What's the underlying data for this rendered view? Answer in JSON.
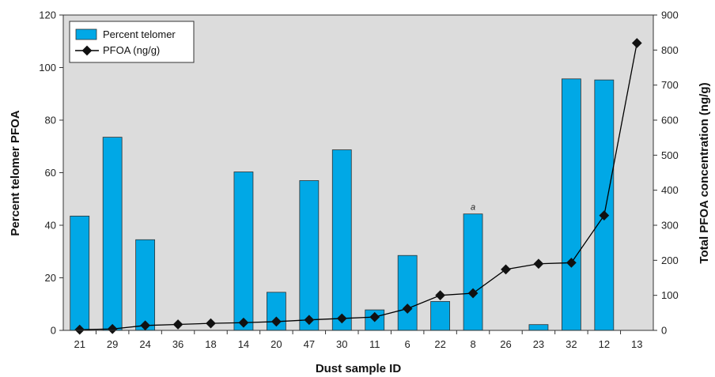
{
  "chart_data": {
    "type": "bar",
    "categories": [
      "21",
      "29",
      "24",
      "36",
      "18",
      "14",
      "20",
      "47",
      "30",
      "11",
      "6",
      "22",
      "8",
      "26",
      "23",
      "32",
      "12",
      "13"
    ],
    "series": [
      {
        "name": "Percent telomer",
        "type": "bar",
        "axis": "left",
        "color": "#00a8e6",
        "values": [
          43.5,
          73.5,
          34.5,
          null,
          null,
          60.3,
          14.5,
          57,
          68.7,
          7.8,
          28.5,
          11,
          44.3,
          null,
          2.2,
          95.7,
          95.3,
          null
        ]
      },
      {
        "name": "PFOA (ng/g)",
        "type": "line",
        "axis": "right",
        "color": "#000000",
        "marker": "diamond",
        "values": [
          2,
          4,
          14,
          17,
          20,
          22,
          25,
          30,
          34,
          38,
          62,
          100,
          106,
          174,
          190,
          193,
          328,
          820
        ]
      }
    ],
    "xlabel": "Dust sample ID",
    "ylabel_left": "Percent telomer PFOA",
    "ylabel_right": "Total PFOA concentration (ng/g)",
    "ylim_left": [
      0,
      120
    ],
    "yticks_left": [
      "0",
      "20",
      "40",
      "60",
      "80",
      "100",
      "120"
    ],
    "ylim_right": [
      0,
      900
    ],
    "yticks_right": [
      "0",
      "100",
      "200",
      "300",
      "400",
      "500",
      "600",
      "700",
      "800",
      "900"
    ],
    "annotations": [
      {
        "category": "8",
        "text": "a"
      }
    ],
    "legend": {
      "position": "top-left",
      "entries": [
        "Percent telomer",
        "PFOA (ng/g)"
      ]
    },
    "plot_background": "#dcdcdc",
    "grid": false
  }
}
